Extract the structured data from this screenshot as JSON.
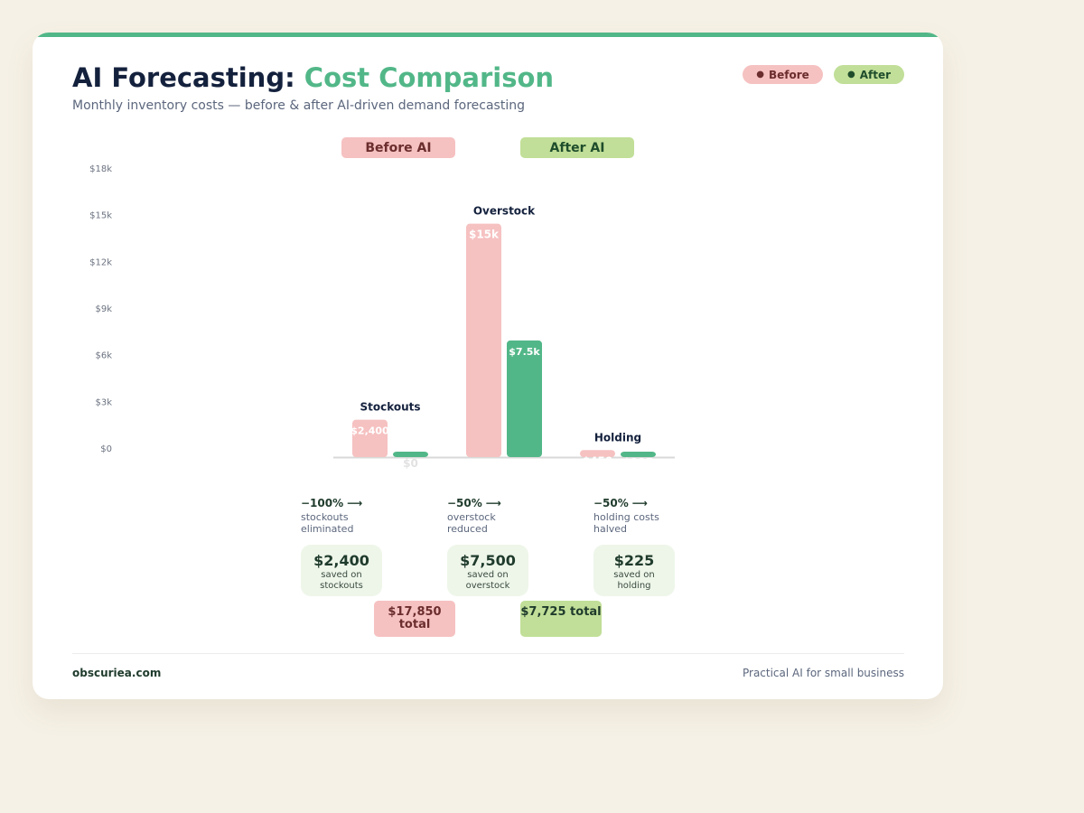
{
  "header": {
    "title_main": "AI Forecasting:",
    "title_accent": "Cost Comparison",
    "subtitle": "Monthly inventory costs — before & after AI-driven demand forecasting"
  },
  "legend": {
    "before": "Before",
    "after": "After",
    "dot": "●"
  },
  "groups": {
    "before": "Before AI",
    "after": "After AI"
  },
  "colors": {
    "before": "#f6c1c1",
    "after": "#52b788",
    "accent": "#52b788",
    "after_pill": "#c1df98"
  },
  "chart_data": {
    "type": "bar",
    "categories": [
      "Stockouts",
      "Overstock",
      "Holding"
    ],
    "series": [
      {
        "name": "Before",
        "values": [
          2400,
          15000,
          450
        ],
        "labels": [
          "$2,400",
          "$15k",
          "$450"
        ]
      },
      {
        "name": "After",
        "values": [
          0,
          7500,
          225
        ],
        "labels": [
          "$0",
          "$7.5k",
          "$225"
        ]
      }
    ],
    "ylim": [
      0,
      18000
    ],
    "yticks": [
      {
        "value": 0,
        "label": "$0"
      },
      {
        "value": 3000,
        "label": "$3k"
      },
      {
        "value": 6000,
        "label": "$6k"
      },
      {
        "value": 9000,
        "label": "$9k"
      },
      {
        "value": 12000,
        "label": "$12k"
      },
      {
        "value": 15000,
        "label": "$15k"
      },
      {
        "value": 18000,
        "label": "$18k"
      }
    ],
    "grid": false
  },
  "changes": [
    {
      "pct": "−100%",
      "desc": "stockouts eliminated"
    },
    {
      "pct": "−50%",
      "desc": "overstock reduced"
    },
    {
      "pct": "−50%",
      "desc": "holding costs halved"
    }
  ],
  "arrow": "⟶",
  "savings": [
    {
      "amount": "$2,400",
      "label": "saved on stockouts"
    },
    {
      "amount": "$7,500",
      "label": "saved on overstock"
    },
    {
      "amount": "$225",
      "label": "saved on holding"
    }
  ],
  "totals": {
    "before": "$17,850 total",
    "after": "$7,725 total"
  },
  "footer": {
    "site": "obscuriea.com",
    "tagline": "Practical AI for small business"
  }
}
